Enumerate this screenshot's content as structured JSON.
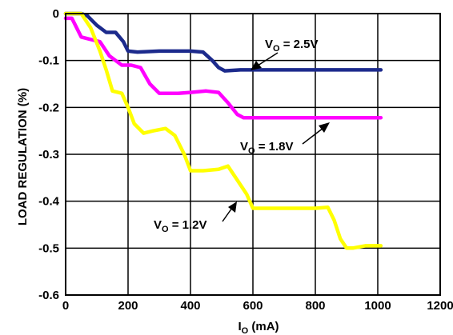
{
  "chart_data": {
    "type": "line",
    "title": "",
    "xlabel": {
      "main": "I",
      "sub": "O",
      "unit": " (mA)"
    },
    "ylabel": "LOAD REGULATION (%)",
    "xlim": [
      0,
      1200
    ],
    "ylim": [
      -0.6,
      0
    ],
    "xticks": [
      "0",
      "200",
      "400",
      "600",
      "800",
      "1000",
      "1200"
    ],
    "yticks": [
      "0",
      "-0.1",
      "-0.2",
      "-0.3",
      "-0.4",
      "-0.5",
      "-0.6"
    ],
    "grid": true,
    "series": [
      {
        "name": "V_O = 2.5V",
        "label": {
          "main": "V",
          "sub": "O",
          "rest": " = 2.5V"
        },
        "color": "#1c2a8c",
        "x": [
          0,
          50,
          70,
          100,
          130,
          160,
          185,
          200,
          230,
          300,
          400,
          440,
          470,
          490,
          510,
          560,
          600,
          700,
          800,
          900,
          1010
        ],
        "y": [
          0,
          0,
          -0.005,
          -0.025,
          -0.04,
          -0.04,
          -0.06,
          -0.08,
          -0.082,
          -0.08,
          -0.08,
          -0.082,
          -0.1,
          -0.115,
          -0.122,
          -0.12,
          -0.12,
          -0.12,
          -0.12,
          -0.12,
          -0.12
        ]
      },
      {
        "name": "V_O = 1.8V",
        "label": {
          "main": "V",
          "sub": "O",
          "rest": " = 1.8V"
        },
        "color": "#ff00ff",
        "x": [
          0,
          20,
          50,
          80,
          110,
          140,
          180,
          210,
          240,
          270,
          300,
          360,
          400,
          450,
          490,
          520,
          550,
          570,
          600,
          700,
          800,
          900,
          1010
        ],
        "y": [
          -0.01,
          -0.01,
          -0.05,
          -0.055,
          -0.06,
          -0.09,
          -0.11,
          -0.11,
          -0.115,
          -0.15,
          -0.17,
          -0.17,
          -0.168,
          -0.165,
          -0.168,
          -0.19,
          -0.215,
          -0.222,
          -0.222,
          -0.222,
          -0.222,
          -0.222,
          -0.222
        ]
      },
      {
        "name": "V_O = 1.2V",
        "label": {
          "main": "V",
          "sub": "O",
          "rest": " = 1.2V"
        },
        "color": "#ffff00",
        "x": [
          0,
          50,
          80,
          110,
          130,
          150,
          180,
          200,
          220,
          250,
          280,
          320,
          350,
          380,
          400,
          440,
          490,
          520,
          550,
          580,
          600,
          640,
          700,
          800,
          840,
          860,
          880,
          900,
          920,
          960,
          1010
        ],
        "y": [
          0,
          0,
          -0.03,
          -0.08,
          -0.12,
          -0.165,
          -0.17,
          -0.2,
          -0.235,
          -0.255,
          -0.25,
          -0.245,
          -0.26,
          -0.3,
          -0.335,
          -0.335,
          -0.332,
          -0.325,
          -0.355,
          -0.385,
          -0.415,
          -0.415,
          -0.415,
          -0.415,
          -0.413,
          -0.44,
          -0.48,
          -0.5,
          -0.5,
          -0.495,
          -0.495
        ]
      }
    ]
  }
}
